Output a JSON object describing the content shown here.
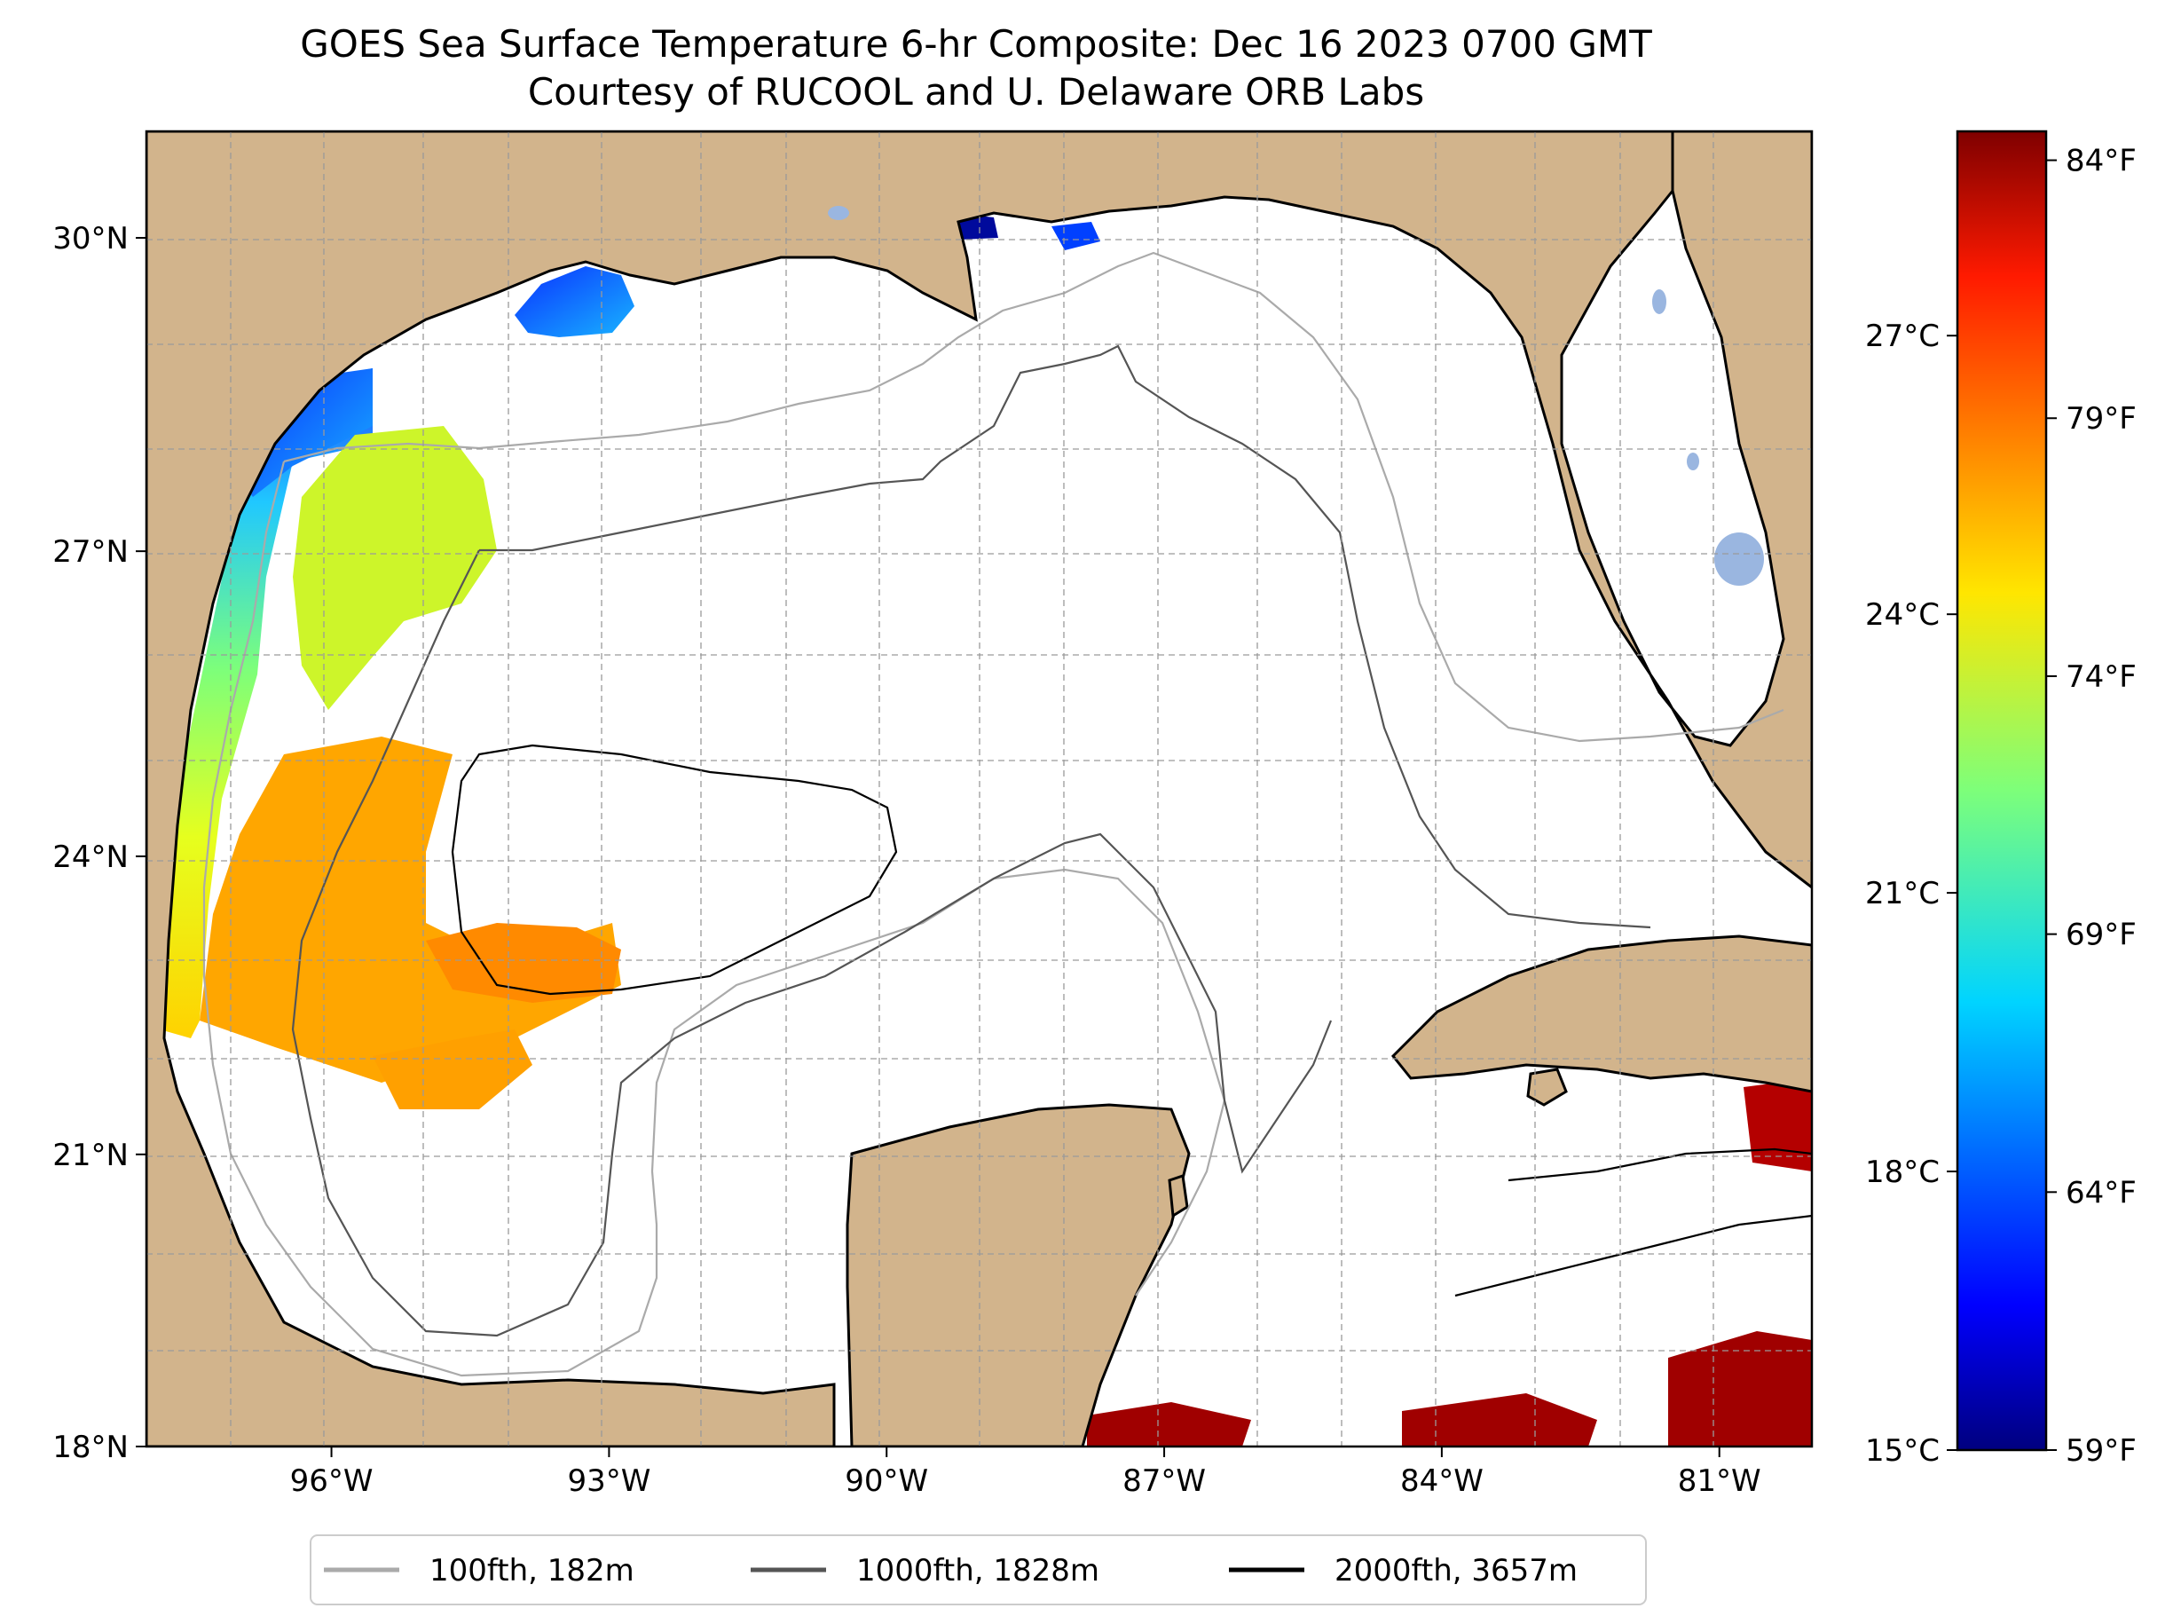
{
  "title": {
    "line1": "GOES Sea Surface Temperature 6-hr Composite: Dec 16 2023 0700 GMT",
    "line2": "Courtesy of RUCOOL and U. Delaware ORB Labs"
  },
  "map": {
    "lon_range": [
      -98.0,
      -80.0
    ],
    "lat_range": [
      18.0,
      31.0
    ],
    "lon_ticks": [
      {
        "value": -96,
        "label": "96°W"
      },
      {
        "value": -93,
        "label": "93°W"
      },
      {
        "value": -90,
        "label": "90°W"
      },
      {
        "value": -87,
        "label": "87°W"
      },
      {
        "value": -84,
        "label": "84°W"
      },
      {
        "value": -81,
        "label": "81°W"
      }
    ],
    "lat_ticks": [
      {
        "value": 18,
        "label": "18°N"
      },
      {
        "value": 21,
        "label": "21°N"
      },
      {
        "value": 24,
        "label": "24°N"
      },
      {
        "value": 27,
        "label": "27°N"
      },
      {
        "value": 30,
        "label": "30°N"
      }
    ],
    "grid": true,
    "land_color": "#d2b48c",
    "ocean_color": "#ffffff",
    "lake_color": "#9ab6e0"
  },
  "colorbar": {
    "colormap": "jet",
    "min_c": 15,
    "max_c": 29.2,
    "celsius_ticks": [
      {
        "value": 15,
        "label": "15°C"
      },
      {
        "value": 18,
        "label": "18°C"
      },
      {
        "value": 21,
        "label": "21°C"
      },
      {
        "value": 24,
        "label": "24°C"
      },
      {
        "value": 27,
        "label": "27°C"
      }
    ],
    "fahrenheit_ticks": [
      {
        "value": 59,
        "label": "59°F"
      },
      {
        "value": 64,
        "label": "64°F"
      },
      {
        "value": 69,
        "label": "69°F"
      },
      {
        "value": 74,
        "label": "74°F"
      },
      {
        "value": 79,
        "label": "79°F"
      },
      {
        "value": 84,
        "label": "84°F"
      }
    ]
  },
  "legend": {
    "placement": "bottom-center",
    "items": [
      {
        "label": "100fth, 182m",
        "color": "#aaaaaa"
      },
      {
        "label": "1000fth, 1828m",
        "color": "#555555"
      },
      {
        "label": "2000fth, 3657m",
        "color": "#000000"
      }
    ]
  }
}
